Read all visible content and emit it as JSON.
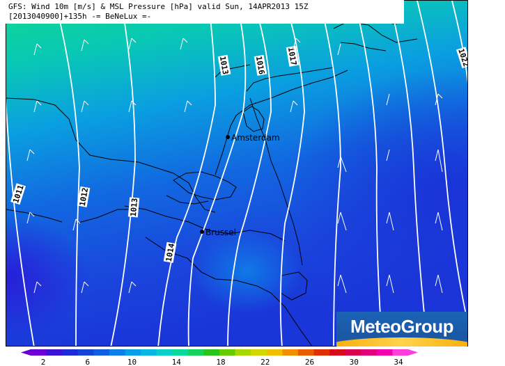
{
  "header": {
    "line1": "GFS: Wind 10m [m/s] & MSL Pressure [hPa] valid Sun, 14APR2013 15Z",
    "line2": "[2013040900]+135h -= BeNeLux =-"
  },
  "cities": [
    {
      "name": "Amsterdam"
    },
    {
      "name": "Brussel"
    }
  ],
  "isobars": [
    {
      "value": "1011",
      "label": "1011"
    },
    {
      "value": "1012",
      "label": "1012"
    },
    {
      "value": "1013",
      "label": "1013"
    },
    {
      "value": "1013",
      "label": "1013"
    },
    {
      "value": "1014",
      "label": "1014"
    },
    {
      "value": "1016",
      "label": "1016"
    },
    {
      "value": "1017",
      "label": "1017"
    },
    {
      "value": "1022",
      "label": "1022"
    }
  ],
  "color_scale": {
    "ticks": [
      "2",
      "6",
      "10",
      "14",
      "18",
      "22",
      "26",
      "30",
      "34"
    ],
    "colors": [
      "#6a00d6",
      "#3b12d8",
      "#1d2ad9",
      "#1543d6",
      "#0f5ee0",
      "#0d7fe8",
      "#0a9ee8",
      "#07b9e0",
      "#06d0c7",
      "#07d99a",
      "#14d45e",
      "#29c41a",
      "#66cc00",
      "#a8d600",
      "#d4d600",
      "#f0c000",
      "#f09000",
      "#e85d00",
      "#e03000",
      "#d80a1a",
      "#d8004a",
      "#e0007a",
      "#f000b0",
      "#ff3cdc"
    ]
  },
  "branding": {
    "logo_text": "MeteoGroup"
  }
}
